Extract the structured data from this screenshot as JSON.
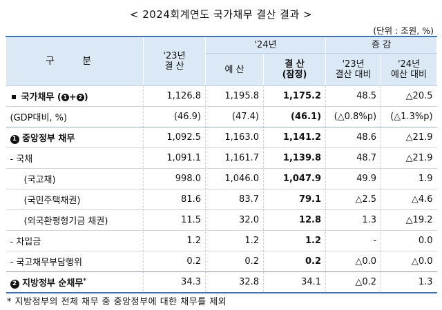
{
  "title": "< 2024회계연도 국가채무 결산 결과 >",
  "unit": "(단위 : 조원, %)",
  "header": {
    "category": "구 분",
    "y23_line1": "'23년",
    "y23_line2": "결 산",
    "y24": "'24년",
    "budget": "예 산",
    "settle_line1": "결 산",
    "settle_line2": "(잠정)",
    "change": "증 감",
    "vs23_line1": "'23년",
    "vs23_line2": "결산 대비",
    "vs24_line1": "'24년",
    "vs24_line2": "예산 대비"
  },
  "rows": [
    {
      "label": "국가채무",
      "marker_1": "1",
      "marker_2": "2",
      "marker_text_open": "(",
      "marker_text_plus": "+",
      "marker_text_close": ")",
      "y23": "1,126.8",
      "budget": "1,195.8",
      "settle": "1,175.2",
      "vs23": "48.5",
      "vs24": "△20.5"
    },
    {
      "label": "(GDP대비, %)",
      "y23": "(46.9)",
      "budget": "(47.4)",
      "settle": "(46.1)",
      "vs23": "(△0.8%p)",
      "vs24": "(△1.3%p)"
    },
    {
      "label": "중앙정부 채무",
      "marker": "1",
      "y23": "1,092.5",
      "budget": "1,163.0",
      "settle": "1,141.2",
      "vs23": "48.6",
      "vs24": "△21.9"
    },
    {
      "label": "- 국채",
      "y23": "1,091.1",
      "budget": "1,161.7",
      "settle": "1,139.8",
      "vs23": "48.7",
      "vs24": "△21.9"
    },
    {
      "label": "(국고채)",
      "y23": "998.0",
      "budget": "1,046.0",
      "settle": "1,047.9",
      "vs23": "49.9",
      "vs24": "1.9"
    },
    {
      "label": "(국민주택채권)",
      "y23": "81.6",
      "budget": "83.7",
      "settle": "79.1",
      "vs23": "△2.5",
      "vs24": "△4.6"
    },
    {
      "label": "(외국환평형기금 채권)",
      "y23": "11.5",
      "budget": "32.0",
      "settle": "12.8",
      "vs23": "1.3",
      "vs24": "△19.2"
    },
    {
      "label": "- 차입금",
      "y23": "1.2",
      "budget": "1.2",
      "settle": "1.2",
      "vs23": "-",
      "vs24": "0.0"
    },
    {
      "label": "- 국고채무부담행위",
      "y23": "0.2",
      "budget": "0.2",
      "settle": "0.2",
      "vs23": "△0.0",
      "vs24": "△0.0"
    },
    {
      "label": "지방정부 순채무",
      "marker": "2",
      "sup": "*",
      "y23": "34.3",
      "budget": "32.8",
      "settle": "34.1",
      "vs23": "△0.2",
      "vs24": "1.3"
    }
  ],
  "footnote": "* 지방정부의 전체 채무 중 중앙정부에 대한 채무를 제외"
}
